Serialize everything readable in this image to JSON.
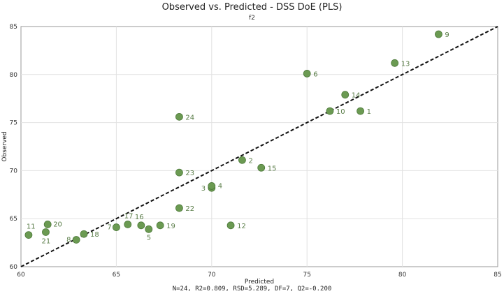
{
  "chart_data": {
    "type": "scatter",
    "title": "Observed vs. Predicted - DSS DoE (PLS)",
    "subtitle": "f2",
    "xlabel": "Predicted",
    "ylabel": "Observed",
    "xlim": [
      60,
      85
    ],
    "ylim": [
      60,
      85
    ],
    "x_ticks": [
      60,
      65,
      70,
      75,
      80,
      85
    ],
    "y_ticks": [
      60,
      65,
      70,
      75,
      80,
      85
    ],
    "grid": true,
    "reference_line": "y = x",
    "stats": "N=24, R2=0.809, RSD=5.289, DF=7, Q2=-0.200",
    "point_color": "#6b9a52",
    "label_color": "#5a7d48",
    "points": [
      {
        "label": "1",
        "x": 77.8,
        "y": 76.2
      },
      {
        "label": "2",
        "x": 71.6,
        "y": 71.1
      },
      {
        "label": "3",
        "x": 70.0,
        "y": 68.2
      },
      {
        "label": "4",
        "x": 70.0,
        "y": 68.4
      },
      {
        "label": "5",
        "x": 66.7,
        "y": 63.9
      },
      {
        "label": "6",
        "x": 75.0,
        "y": 80.1
      },
      {
        "label": "7",
        "x": 65.0,
        "y": 64.1
      },
      {
        "label": "8",
        "x": 62.9,
        "y": 62.8
      },
      {
        "label": "9",
        "x": 81.9,
        "y": 84.2
      },
      {
        "label": "10",
        "x": 76.2,
        "y": 76.2
      },
      {
        "label": "11",
        "x": 60.4,
        "y": 63.3
      },
      {
        "label": "12",
        "x": 71.0,
        "y": 64.3
      },
      {
        "label": "13",
        "x": 79.6,
        "y": 81.2
      },
      {
        "label": "14",
        "x": 77.0,
        "y": 77.9
      },
      {
        "label": "15",
        "x": 72.6,
        "y": 70.3
      },
      {
        "label": "16",
        "x": 66.3,
        "y": 64.3
      },
      {
        "label": "17",
        "x": 65.6,
        "y": 64.4
      },
      {
        "label": "18",
        "x": 63.3,
        "y": 63.4
      },
      {
        "label": "19",
        "x": 67.3,
        "y": 64.3
      },
      {
        "label": "20",
        "x": 61.4,
        "y": 64.4
      },
      {
        "label": "21",
        "x": 61.3,
        "y": 63.6
      },
      {
        "label": "22",
        "x": 68.3,
        "y": 66.1
      },
      {
        "label": "23",
        "x": 68.3,
        "y": 69.8
      },
      {
        "label": "24",
        "x": 68.3,
        "y": 75.6
      }
    ]
  }
}
